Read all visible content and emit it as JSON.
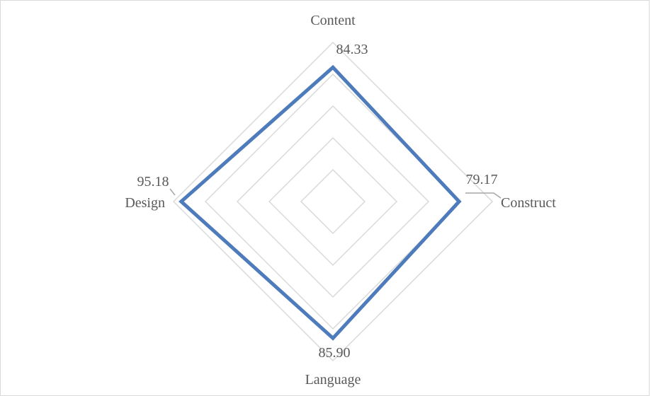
{
  "chart_data": {
    "type": "radar",
    "categories": [
      "Content",
      "Construct",
      "Language",
      "Design"
    ],
    "series": [
      {
        "values": [
          84.33,
          79.17,
          85.9,
          95.18
        ],
        "color": "#4e7bbb"
      }
    ],
    "data_labels": [
      "84.33",
      "79.17",
      "85.90",
      "95.18"
    ],
    "rlim": [
      0,
      100
    ],
    "grid_rings": 5,
    "grid": true,
    "legend": "none",
    "gridline_color": "#d9d9d9",
    "label_color": "#595959"
  }
}
